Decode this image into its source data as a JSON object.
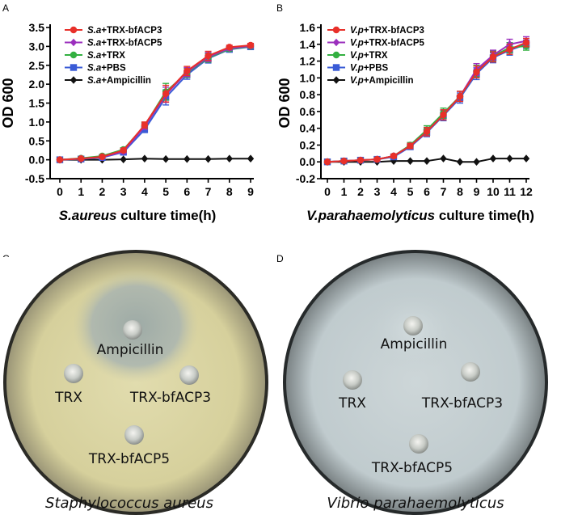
{
  "panels": {
    "a": {
      "letter": "A"
    },
    "b": {
      "letter": "B"
    },
    "c": {
      "letter": "C"
    },
    "d": {
      "letter": "D"
    }
  },
  "chart_data": [
    {
      "type": "line",
      "ylabel": "OD 600",
      "xlabel_italic": "S.aureus",
      "xlabel_rest": " culture time(h)",
      "ylim": [
        -0.5,
        3.5
      ],
      "yticks": [
        -0.5,
        0.0,
        0.5,
        1.0,
        1.5,
        2.0,
        2.5,
        3.0,
        3.5
      ],
      "ytick_labels": [
        "-0.5",
        "0.0",
        "0.5",
        "1.0",
        "1.5",
        "2.0",
        "2.5",
        "3.0",
        "3.5"
      ],
      "x": [
        0,
        1,
        2,
        3,
        4,
        5,
        6,
        7,
        8,
        9
      ],
      "xtick_labels": [
        "0",
        "1",
        "2",
        "3",
        "4",
        "5",
        "6",
        "7",
        "8",
        "9"
      ],
      "legend_position": "top-left",
      "series": [
        {
          "prefix": "S.a",
          "suffix": "+TRX-bfACP3",
          "color": "#e8302a",
          "marker": "circle",
          "values": [
            0.0,
            0.03,
            0.08,
            0.25,
            0.92,
            1.75,
            2.35,
            2.75,
            2.98,
            3.03
          ],
          "errors": [
            0.02,
            0.02,
            0.03,
            0.05,
            0.08,
            0.22,
            0.12,
            0.12,
            0.05,
            0.05
          ]
        },
        {
          "prefix": "S.a",
          "suffix": "+TRX-bfACP5",
          "color": "#9b2fbd",
          "marker": "diamond",
          "values": [
            0.0,
            0.03,
            0.07,
            0.22,
            0.88,
            1.72,
            2.32,
            2.72,
            2.95,
            3.01
          ],
          "errors": [
            0.02,
            0.02,
            0.03,
            0.05,
            0.08,
            0.2,
            0.12,
            0.12,
            0.05,
            0.05
          ]
        },
        {
          "prefix": "S.a",
          "suffix": "+TRX",
          "color": "#33b041",
          "marker": "circle",
          "values": [
            0.0,
            0.04,
            0.1,
            0.27,
            0.9,
            1.8,
            2.3,
            2.7,
            2.93,
            3.0
          ],
          "errors": [
            0.02,
            0.02,
            0.03,
            0.05,
            0.08,
            0.22,
            0.12,
            0.12,
            0.05,
            0.05
          ]
        },
        {
          "prefix": "S.a",
          "suffix": "+PBS",
          "color": "#3a5bd6",
          "marker": "square",
          "values": [
            0.0,
            0.02,
            0.06,
            0.2,
            0.8,
            1.65,
            2.25,
            2.68,
            2.92,
            2.99
          ],
          "errors": [
            0.02,
            0.02,
            0.03,
            0.05,
            0.08,
            0.2,
            0.12,
            0.12,
            0.05,
            0.05
          ]
        },
        {
          "prefix": "S.a",
          "suffix": "+Ampicillin",
          "color": "#111111",
          "marker": "diamond",
          "values": [
            0.0,
            0.0,
            0.0,
            0.01,
            0.03,
            0.02,
            0.02,
            0.02,
            0.03,
            0.03
          ],
          "errors": [
            0,
            0,
            0,
            0,
            0,
            0,
            0,
            0,
            0,
            0
          ]
        }
      ]
    },
    {
      "type": "line",
      "ylabel": "OD 600",
      "xlabel_italic": "V.parahaemolyticus",
      "xlabel_rest": " culture time(h)",
      "ylim": [
        -0.2,
        1.6
      ],
      "yticks": [
        -0.2,
        0.0,
        0.2,
        0.4,
        0.6,
        0.8,
        1.0,
        1.2,
        1.4,
        1.6
      ],
      "ytick_labels": [
        "-0.2",
        "0.0",
        "0.2",
        "0.4",
        "0.6",
        "0.8",
        "1.0",
        "1.2",
        "1.4",
        "1.6"
      ],
      "x": [
        0,
        1,
        2,
        3,
        4,
        5,
        6,
        7,
        8,
        9,
        10,
        11,
        12
      ],
      "xtick_labels": [
        "0",
        "1",
        "2",
        "3",
        "4",
        "5",
        "6",
        "7",
        "8",
        "9",
        "10",
        "11",
        "12"
      ],
      "legend_position": "top-left",
      "series": [
        {
          "prefix": "V.p",
          "suffix": "+TRX-bfACP3",
          "color": "#e8302a",
          "marker": "circle",
          "values": [
            0.0,
            0.01,
            0.02,
            0.03,
            0.07,
            0.19,
            0.36,
            0.56,
            0.78,
            1.07,
            1.25,
            1.34,
            1.42
          ],
          "errors": [
            0.01,
            0.01,
            0.01,
            0.02,
            0.02,
            0.03,
            0.05,
            0.06,
            0.06,
            0.07,
            0.06,
            0.06,
            0.05
          ]
        },
        {
          "prefix": "V.p",
          "suffix": "+TRX-bfACP5",
          "color": "#9b2fbd",
          "marker": "diamond",
          "values": [
            0.0,
            0.01,
            0.02,
            0.03,
            0.07,
            0.19,
            0.36,
            0.56,
            0.78,
            1.1,
            1.27,
            1.4,
            1.44
          ],
          "errors": [
            0.01,
            0.01,
            0.01,
            0.02,
            0.02,
            0.03,
            0.05,
            0.06,
            0.06,
            0.07,
            0.06,
            0.06,
            0.05
          ]
        },
        {
          "prefix": "V.p",
          "suffix": "+TRX",
          "color": "#33b041",
          "marker": "circle",
          "values": [
            0.0,
            0.01,
            0.02,
            0.03,
            0.07,
            0.2,
            0.38,
            0.58,
            0.78,
            1.08,
            1.26,
            1.36,
            1.38
          ],
          "errors": [
            0.01,
            0.01,
            0.01,
            0.02,
            0.02,
            0.03,
            0.05,
            0.06,
            0.06,
            0.07,
            0.06,
            0.06,
            0.05
          ]
        },
        {
          "prefix": "V.p",
          "suffix": "+PBS",
          "color": "#3a5bd6",
          "marker": "square",
          "values": [
            0.0,
            0.01,
            0.02,
            0.03,
            0.06,
            0.18,
            0.35,
            0.55,
            0.76,
            1.05,
            1.24,
            1.33,
            1.4
          ],
          "errors": [
            0.01,
            0.01,
            0.01,
            0.02,
            0.02,
            0.03,
            0.05,
            0.06,
            0.06,
            0.07,
            0.06,
            0.06,
            0.05
          ]
        },
        {
          "prefix": "V.p",
          "suffix": "+Ampicillin",
          "color": "#111111",
          "marker": "diamond",
          "values": [
            0.0,
            0.0,
            0.0,
            0.0,
            0.01,
            0.01,
            0.01,
            0.04,
            0.0,
            0.0,
            0.04,
            0.04,
            0.04
          ],
          "errors": [
            0,
            0,
            0,
            0,
            0,
            0,
            0,
            0,
            0,
            0,
            0,
            0,
            0
          ]
        }
      ]
    }
  ],
  "plates": {
    "c": {
      "labels": [
        "Ampicillin",
        "TRX",
        "TRX-bfACP3",
        "TRX-bfACP5"
      ],
      "caption": "Staphylococcus aureus",
      "agar_color": "#d9d3a0",
      "zone_color": "#a9b4b0"
    },
    "d": {
      "labels": [
        "Ampicillin",
        "TRX",
        "TRX-bfACP3",
        "TRX-bfACP5"
      ],
      "caption": "Vibrio parahaemolyticus",
      "agar_color": "#c2cdcf",
      "zone_color": "#bcc7ca"
    }
  }
}
